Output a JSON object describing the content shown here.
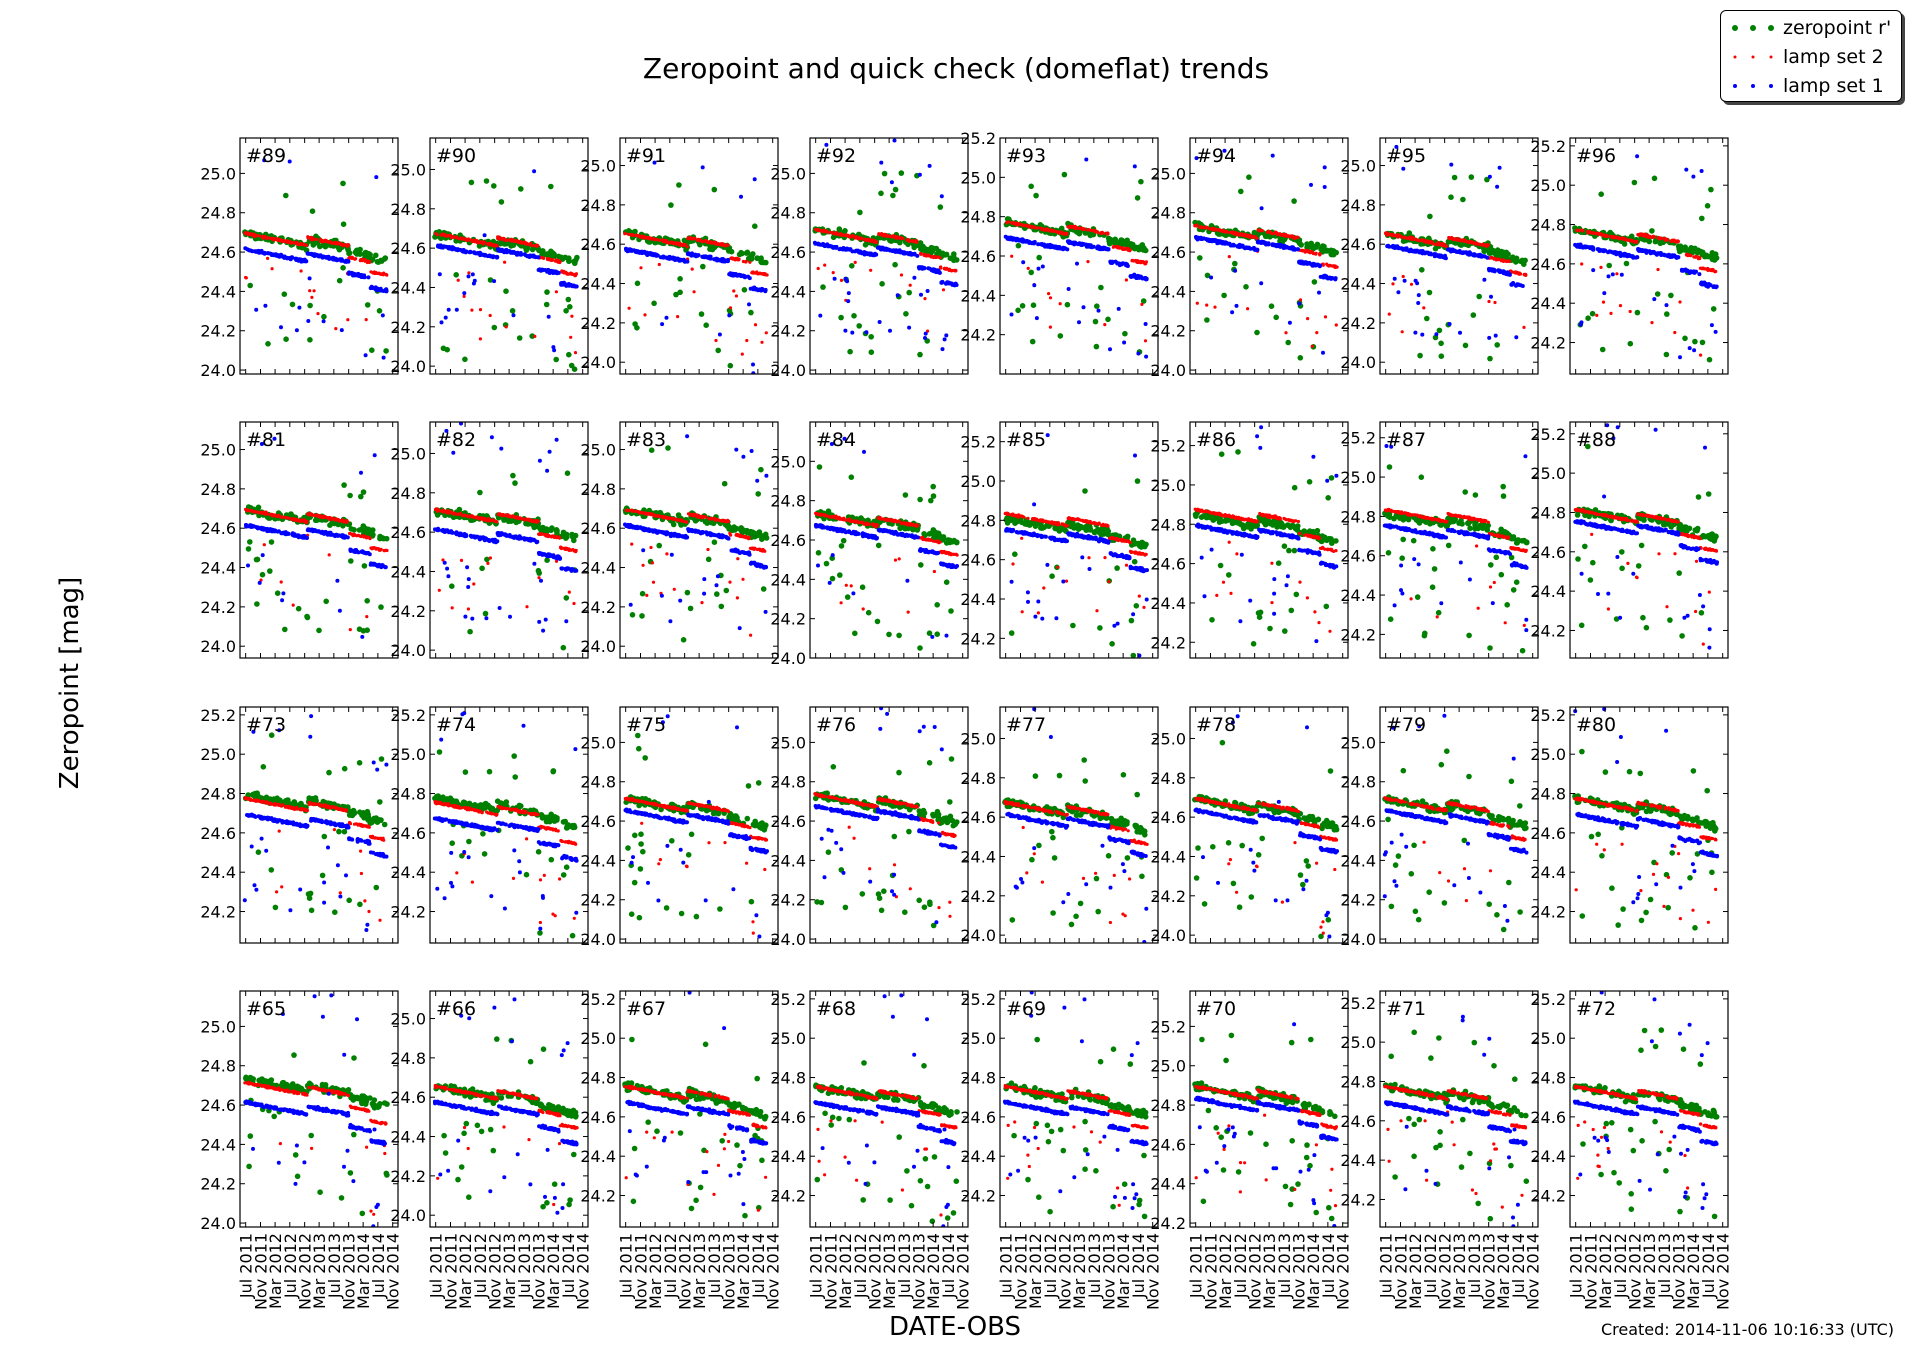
{
  "figure": {
    "title": "Zeropoint and quick check (domeflat) trends",
    "ylabel": "Zeropoint [mag]",
    "xlabel": "DATE-OBS",
    "created": "Created: 2014-11-06 10:16:33 (UTC)"
  },
  "legend": [
    {
      "label": "zeropoint r'",
      "color": "#008000"
    },
    {
      "label": "lamp set 2",
      "color": "#ff0000"
    },
    {
      "label": "lamp set 1",
      "color": "#0000ff"
    }
  ],
  "colors": {
    "zeropoint": "#008000",
    "lamp2": "#ff0000",
    "lamp1": "#0000ff"
  },
  "chart_data": {
    "type": "scatter",
    "x_tick_labels": [
      "Jul 2011",
      "Nov 2011",
      "Mar 2012",
      "Jul 2012",
      "Nov 2012",
      "Mar 2013",
      "Jul 2013",
      "Nov 2013",
      "Mar 2014",
      "Jul 2014",
      "Nov 2014"
    ],
    "xlim": [
      "2011-05-15",
      "2014-12-15"
    ],
    "panels": [
      {
        "label": "#89",
        "ylim": [
          23.98,
          25.18
        ],
        "yticks": [
          24.0,
          24.2,
          24.4,
          24.6,
          24.8,
          25.0
        ],
        "zp": 24.7,
        "l2": 24.7,
        "l1": 24.62
      },
      {
        "label": "#90",
        "ylim": [
          23.96,
          25.16
        ],
        "yticks": [
          24.0,
          24.2,
          24.4,
          24.6,
          24.8,
          25.0
        ],
        "zp": 24.68,
        "l2": 24.68,
        "l1": 24.62
      },
      {
        "label": "#91",
        "ylim": [
          23.94,
          25.14
        ],
        "yticks": [
          24.0,
          24.2,
          24.4,
          24.6,
          24.8,
          25.0
        ],
        "zp": 24.66,
        "l2": 24.66,
        "l1": 24.58
      },
      {
        "label": "#92",
        "ylim": [
          23.98,
          25.18
        ],
        "yticks": [
          24.0,
          24.2,
          24.4,
          24.6,
          24.8,
          25.0
        ],
        "zp": 24.72,
        "l2": 24.72,
        "l1": 24.65
      },
      {
        "label": "#93",
        "ylim": [
          24.0,
          25.2
        ],
        "yticks": [
          24.2,
          24.4,
          24.6,
          24.8,
          25.0,
          25.2
        ],
        "zp": 24.78,
        "l2": 24.78,
        "l1": 24.7
      },
      {
        "label": "#94",
        "ylim": [
          23.98,
          25.18
        ],
        "yticks": [
          24.0,
          24.2,
          24.4,
          24.6,
          24.8,
          25.0
        ],
        "zp": 24.74,
        "l2": 24.74,
        "l1": 24.68
      },
      {
        "label": "#95",
        "ylim": [
          23.94,
          25.14
        ],
        "yticks": [
          24.0,
          24.2,
          24.4,
          24.6,
          24.8,
          25.0
        ],
        "zp": 24.66,
        "l2": 24.66,
        "l1": 24.6
      },
      {
        "label": "#96",
        "ylim": [
          24.04,
          25.24
        ],
        "yticks": [
          24.2,
          24.4,
          24.6,
          24.8,
          25.0,
          25.2
        ],
        "zp": 24.78,
        "l2": 24.78,
        "l1": 24.7
      },
      {
        "label": "#81",
        "ylim": [
          23.94,
          25.14
        ],
        "yticks": [
          24.0,
          24.2,
          24.4,
          24.6,
          24.8,
          25.0
        ],
        "zp": 24.7,
        "l2": 24.7,
        "l1": 24.62
      },
      {
        "label": "#82",
        "ylim": [
          23.96,
          25.16
        ],
        "yticks": [
          24.0,
          24.2,
          24.4,
          24.6,
          24.8,
          25.0
        ],
        "zp": 24.72,
        "l2": 24.72,
        "l1": 24.62
      },
      {
        "label": "#83",
        "ylim": [
          23.94,
          25.14
        ],
        "yticks": [
          24.0,
          24.2,
          24.4,
          24.6,
          24.8,
          25.0
        ],
        "zp": 24.7,
        "l2": 24.7,
        "l1": 24.62
      },
      {
        "label": "#84",
        "ylim": [
          24.0,
          25.2
        ],
        "yticks": [
          24.0,
          24.2,
          24.4,
          24.6,
          24.8,
          25.0
        ],
        "zp": 24.74,
        "l2": 24.74,
        "l1": 24.68
      },
      {
        "label": "#85",
        "ylim": [
          24.1,
          25.3
        ],
        "yticks": [
          24.2,
          24.4,
          24.6,
          24.8,
          25.0,
          25.2
        ],
        "zp": 24.82,
        "l2": 24.84,
        "l1": 24.76
      },
      {
        "label": "#86",
        "ylim": [
          24.12,
          25.32
        ],
        "yticks": [
          24.2,
          24.4,
          24.6,
          24.8,
          25.0,
          25.2
        ],
        "zp": 24.86,
        "l2": 24.88,
        "l1": 24.8
      },
      {
        "label": "#87",
        "ylim": [
          24.08,
          25.28
        ],
        "yticks": [
          24.2,
          24.4,
          24.6,
          24.8,
          25.0,
          25.2
        ],
        "zp": 24.82,
        "l2": 24.84,
        "l1": 24.76
      },
      {
        "label": "#88",
        "ylim": [
          24.06,
          25.26
        ],
        "yticks": [
          24.2,
          24.4,
          24.6,
          24.8,
          25.0,
          25.2
        ],
        "zp": 24.82,
        "l2": 24.82,
        "l1": 24.76
      },
      {
        "label": "#73",
        "ylim": [
          24.04,
          25.24
        ],
        "yticks": [
          24.2,
          24.4,
          24.6,
          24.8,
          25.0,
          25.2
        ],
        "zp": 24.8,
        "l2": 24.78,
        "l1": 24.7
      },
      {
        "label": "#74",
        "ylim": [
          24.04,
          25.24
        ],
        "yticks": [
          24.2,
          24.4,
          24.6,
          24.8,
          25.0,
          25.2
        ],
        "zp": 24.78,
        "l2": 24.76,
        "l1": 24.68
      },
      {
        "label": "#75",
        "ylim": [
          23.98,
          25.18
        ],
        "yticks": [
          24.0,
          24.2,
          24.4,
          24.6,
          24.8,
          25.0
        ],
        "zp": 24.72,
        "l2": 24.72,
        "l1": 24.66
      },
      {
        "label": "#76",
        "ylim": [
          23.98,
          25.18
        ],
        "yticks": [
          24.0,
          24.2,
          24.4,
          24.6,
          24.8,
          25.0
        ],
        "zp": 24.74,
        "l2": 24.74,
        "l1": 24.68
      },
      {
        "label": "#77",
        "ylim": [
          23.96,
          25.16
        ],
        "yticks": [
          24.0,
          24.2,
          24.4,
          24.6,
          24.8,
          25.0
        ],
        "zp": 24.68,
        "l2": 24.68,
        "l1": 24.62
      },
      {
        "label": "#78",
        "ylim": [
          23.96,
          25.16
        ],
        "yticks": [
          24.0,
          24.2,
          24.4,
          24.6,
          24.8,
          25.0
        ],
        "zp": 24.7,
        "l2": 24.7,
        "l1": 24.64
      },
      {
        "label": "#79",
        "ylim": [
          23.98,
          25.18
        ],
        "yticks": [
          24.0,
          24.2,
          24.4,
          24.6,
          24.8,
          25.0
        ],
        "zp": 24.72,
        "l2": 24.72,
        "l1": 24.66
      },
      {
        "label": "#80",
        "ylim": [
          24.04,
          25.24
        ],
        "yticks": [
          24.2,
          24.4,
          24.6,
          24.8,
          25.0,
          25.2
        ],
        "zp": 24.78,
        "l2": 24.78,
        "l1": 24.7
      },
      {
        "label": "#65",
        "ylim": [
          23.98,
          25.18
        ],
        "yticks": [
          24.0,
          24.2,
          24.4,
          24.6,
          24.8,
          25.0
        ],
        "zp": 24.74,
        "l2": 24.72,
        "l1": 24.62
      },
      {
        "label": "#66",
        "ylim": [
          23.94,
          25.14
        ],
        "yticks": [
          24.0,
          24.2,
          24.4,
          24.6,
          24.8,
          25.0
        ],
        "zp": 24.66,
        "l2": 24.66,
        "l1": 24.58
      },
      {
        "label": "#67",
        "ylim": [
          24.04,
          25.24
        ],
        "yticks": [
          24.2,
          24.4,
          24.6,
          24.8,
          25.0,
          25.2
        ],
        "zp": 24.76,
        "l2": 24.76,
        "l1": 24.68
      },
      {
        "label": "#68",
        "ylim": [
          24.04,
          25.24
        ],
        "yticks": [
          24.2,
          24.4,
          24.6,
          24.8,
          25.0,
          25.2
        ],
        "zp": 24.76,
        "l2": 24.76,
        "l1": 24.68
      },
      {
        "label": "#69",
        "ylim": [
          24.04,
          25.24
        ],
        "yticks": [
          24.2,
          24.4,
          24.6,
          24.8,
          25.0,
          25.2
        ],
        "zp": 24.76,
        "l2": 24.76,
        "l1": 24.68
      },
      {
        "label": "#70",
        "ylim": [
          24.18,
          25.38
        ],
        "yticks": [
          24.2,
          24.4,
          24.6,
          24.8,
          25.0,
          25.2
        ],
        "zp": 24.9,
        "l2": 24.9,
        "l1": 24.84
      },
      {
        "label": "#71",
        "ylim": [
          24.06,
          25.26
        ],
        "yticks": [
          24.2,
          24.4,
          24.6,
          24.8,
          25.0,
          25.2
        ],
        "zp": 24.78,
        "l2": 24.78,
        "l1": 24.7
      },
      {
        "label": "#72",
        "ylim": [
          24.04,
          25.24
        ],
        "yticks": [
          24.2,
          24.4,
          24.6,
          24.8,
          25.0,
          25.2
        ],
        "zp": 24.76,
        "l2": 24.76,
        "l1": 24.68
      }
    ]
  }
}
